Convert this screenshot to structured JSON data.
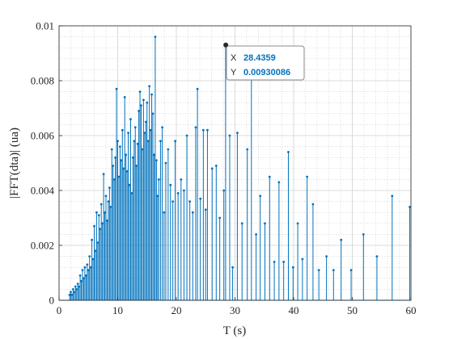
{
  "chart_data": {
    "type": "stem",
    "xlabel": "T (s)",
    "ylabel": "|FFT(dta)| (ua)",
    "xlim": [
      0,
      60
    ],
    "ylim": [
      0,
      0.01
    ],
    "xticks": [
      "0",
      "10",
      "20",
      "30",
      "40",
      "50",
      "60"
    ],
    "yticks": [
      "0",
      "0.002",
      "0.004",
      "0.006",
      "0.008",
      "0.01"
    ],
    "grid": true,
    "minor_grid": true,
    "color": "#0072BD",
    "stems": [
      [
        1.8,
        0.0002
      ],
      [
        2.0,
        0.0003
      ],
      [
        2.2,
        0.0002
      ],
      [
        2.4,
        0.0004
      ],
      [
        2.6,
        0.0003
      ],
      [
        2.8,
        0.0005
      ],
      [
        3.0,
        0.0004
      ],
      [
        3.2,
        0.0006
      ],
      [
        3.4,
        0.0005
      ],
      [
        3.6,
        0.0009
      ],
      [
        3.8,
        0.0007
      ],
      [
        4.0,
        0.0011
      ],
      [
        4.2,
        0.0008
      ],
      [
        4.4,
        0.0012
      ],
      [
        4.6,
        0.0009
      ],
      [
        4.8,
        0.0013
      ],
      [
        5.0,
        0.0011
      ],
      [
        5.2,
        0.0016
      ],
      [
        5.4,
        0.0012
      ],
      [
        5.6,
        0.0022
      ],
      [
        5.8,
        0.0015
      ],
      [
        6.0,
        0.0027
      ],
      [
        6.2,
        0.0018
      ],
      [
        6.4,
        0.0032
      ],
      [
        6.6,
        0.0021
      ],
      [
        6.8,
        0.0031
      ],
      [
        7.0,
        0.0026
      ],
      [
        7.2,
        0.0035
      ],
      [
        7.4,
        0.0028
      ],
      [
        7.6,
        0.0046
      ],
      [
        7.8,
        0.0032
      ],
      [
        8.0,
        0.0038
      ],
      [
        8.2,
        0.0029
      ],
      [
        8.4,
        0.0036
      ],
      [
        8.6,
        0.0041
      ],
      [
        8.8,
        0.0034
      ],
      [
        9.0,
        0.0055
      ],
      [
        9.2,
        0.0049
      ],
      [
        9.4,
        0.0044
      ],
      [
        9.6,
        0.0052
      ],
      [
        9.8,
        0.0077
      ],
      [
        10.0,
        0.0058
      ],
      [
        10.2,
        0.0045
      ],
      [
        10.4,
        0.0056
      ],
      [
        10.6,
        0.0051
      ],
      [
        10.8,
        0.0062
      ],
      [
        11.0,
        0.0048
      ],
      [
        11.2,
        0.0074
      ],
      [
        11.4,
        0.0053
      ],
      [
        11.6,
        0.0047
      ],
      [
        11.8,
        0.0061
      ],
      [
        12.0,
        0.0042
      ],
      [
        12.2,
        0.0066
      ],
      [
        12.4,
        0.0039
      ],
      [
        12.6,
        0.0052
      ],
      [
        12.8,
        0.0058
      ],
      [
        13.0,
        0.0063
      ],
      [
        13.2,
        0.0049
      ],
      [
        13.4,
        0.0057
      ],
      [
        13.6,
        0.0069
      ],
      [
        13.8,
        0.0076
      ],
      [
        14.0,
        0.0071
      ],
      [
        14.2,
        0.0055
      ],
      [
        14.4,
        0.0073
      ],
      [
        14.6,
        0.0061
      ],
      [
        14.8,
        0.0065
      ],
      [
        15.0,
        0.0072
      ],
      [
        15.2,
        0.0058
      ],
      [
        15.4,
        0.0078
      ],
      [
        15.6,
        0.0062
      ],
      [
        15.8,
        0.0075
      ],
      [
        16.0,
        0.0068
      ],
      [
        16.2,
        0.0053
      ],
      [
        16.4,
        0.0096
      ],
      [
        16.6,
        0.0051
      ],
      [
        16.8,
        0.0038
      ],
      [
        17.0,
        0.0044
      ],
      [
        17.3,
        0.0058
      ],
      [
        17.6,
        0.0063
      ],
      [
        17.9,
        0.0032
      ],
      [
        18.2,
        0.005
      ],
      [
        18.6,
        0.0055
      ],
      [
        19.0,
        0.0042
      ],
      [
        19.4,
        0.0036
      ],
      [
        19.8,
        0.0058
      ],
      [
        20.3,
        0.0039
      ],
      [
        20.8,
        0.0044
      ],
      [
        21.3,
        0.004
      ],
      [
        21.8,
        0.006
      ],
      [
        22.3,
        0.0036
      ],
      [
        22.8,
        0.0032
      ],
      [
        23.3,
        0.0063
      ],
      [
        23.6,
        0.0077
      ],
      [
        24.1,
        0.0037
      ],
      [
        24.6,
        0.0062
      ],
      [
        25.0,
        0.0033
      ],
      [
        25.3,
        0.0062
      ],
      [
        26.1,
        0.0048
      ],
      [
        26.8,
        0.0049
      ],
      [
        27.4,
        0.003
      ],
      [
        28.1,
        0.004
      ],
      [
        28.4,
        0.0093
      ],
      [
        29.1,
        0.006
      ],
      [
        29.6,
        0.0012
      ],
      [
        30.4,
        0.0061
      ],
      [
        31.2,
        0.0028
      ],
      [
        32.1,
        0.0055
      ],
      [
        32.8,
        0.0081
      ],
      [
        33.6,
        0.0024
      ],
      [
        34.3,
        0.0038
      ],
      [
        35.1,
        0.0028
      ],
      [
        35.9,
        0.0045
      ],
      [
        36.7,
        0.0014
      ],
      [
        37.5,
        0.0043
      ],
      [
        38.3,
        0.0014
      ],
      [
        39.1,
        0.0054
      ],
      [
        39.9,
        0.0012
      ],
      [
        40.7,
        0.0028
      ],
      [
        41.5,
        0.0015
      ],
      [
        42.3,
        0.0045
      ],
      [
        43.3,
        0.0035
      ],
      [
        44.3,
        0.0011
      ],
      [
        45.6,
        0.0016
      ],
      [
        46.8,
        0.0011
      ],
      [
        48.1,
        0.0022
      ],
      [
        49.8,
        0.0011
      ],
      [
        51.9,
        0.0024
      ],
      [
        54.2,
        0.0016
      ],
      [
        56.8,
        0.0038
      ],
      [
        59.8,
        0.0034
      ]
    ]
  },
  "datatip": {
    "x_label": "X",
    "x_value": "28.4359",
    "y_label": "Y",
    "y_value": "0.00930086",
    "x": 28.4359,
    "y": 0.0093,
    "value_color": "#0072BD"
  }
}
